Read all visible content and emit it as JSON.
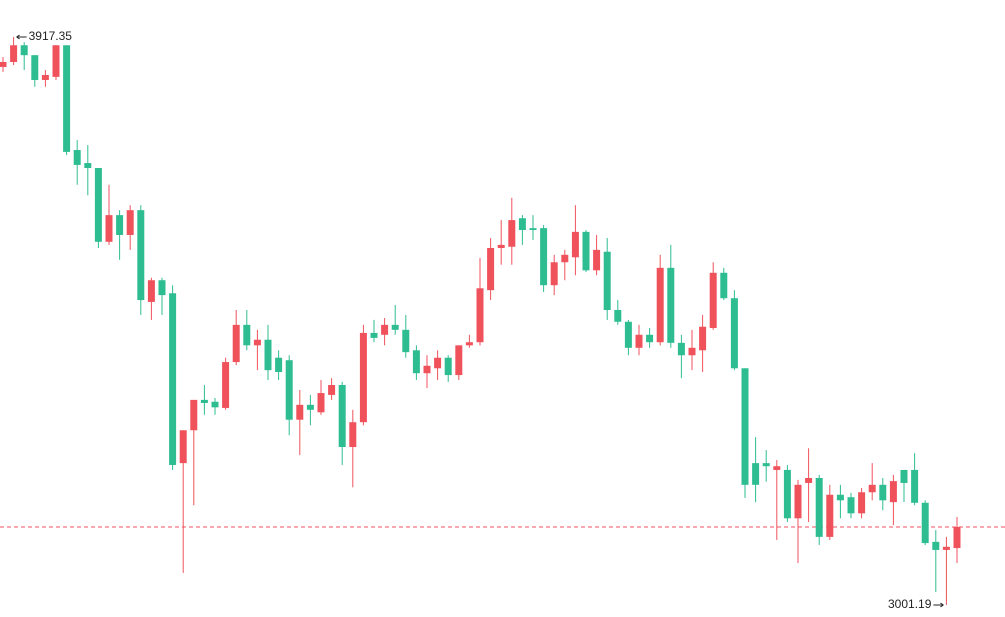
{
  "chart_data": {
    "type": "candlestick",
    "up_color": "#f0525c",
    "down_color": "#2ebd91",
    "last_price_line": true,
    "ylim": [
      2981.8,
      3977.0
    ],
    "annotations": [
      {
        "text": "3917.35"
      },
      {
        "text": "3001.19"
      }
    ],
    "open": [
      3869,
      3877,
      3904,
      3888,
      3848,
      3853,
      3904,
      3735,
      3714,
      3706,
      3587,
      3630,
      3598,
      3638,
      3490,
      3525,
      3504,
      3230,
      3283,
      3332,
      3329,
      3319,
      3393,
      3453,
      3420,
      3429,
      3400,
      3396,
      3300,
      3324,
      3312,
      3340,
      3356,
      3256,
      3296,
      3440,
      3437,
      3453,
      3445,
      3412,
      3375,
      3383,
      3400,
      3372,
      3420,
      3425,
      3509,
      3577,
      3579,
      3625,
      3609,
      3609,
      3517,
      3554,
      3562,
      3603,
      3541,
      3571,
      3477,
      3458,
      3416,
      3437,
      3425,
      3545,
      3424,
      3404,
      3412,
      3448,
      3537,
      3496,
      3383,
      3230,
      3230,
      3219,
      3219,
      3141,
      3198,
      3206,
      3111,
      3179,
      3175,
      3149,
      3183,
      3195,
      3167,
      3219,
      3219,
      3166,
      3103,
      3090,
      3093
    ],
    "high": [
      3885,
      3917.35,
      3909,
      3888,
      3864,
      3904,
      3904,
      3751,
      3743,
      3706,
      3679,
      3638,
      3646,
      3646,
      3529,
      3529,
      3517,
      3283,
      3332,
      3356,
      3335,
      3400,
      3477,
      3477,
      3445,
      3453,
      3412,
      3404,
      3348,
      3340,
      3364,
      3367,
      3361,
      3316,
      3453,
      3461,
      3464,
      3485,
      3469,
      3420,
      3404,
      3412,
      3404,
      3420,
      3437,
      3561,
      3593,
      3622,
      3658,
      3630,
      3630,
      3614,
      3566,
      3574,
      3646,
      3606,
      3598,
      3593,
      3493,
      3461,
      3453,
      3448,
      3566,
      3582,
      3437,
      3445,
      3469,
      3554,
      3545,
      3509,
      3383,
      3272,
      3251,
      3235,
      3227,
      3203,
      3254,
      3211,
      3195,
      3195,
      3182,
      3190,
      3230,
      3206,
      3211,
      3219,
      3246,
      3170,
      3122,
      3111,
      3143
    ],
    "low": [
      3861,
      3872,
      3864,
      3837,
      3837,
      3848,
      3727,
      3679,
      3662,
      3577,
      3582,
      3558,
      3574,
      3469,
      3461,
      3469,
      3219,
      3053,
      3162,
      3308,
      3308,
      3316,
      3388,
      3412,
      3380,
      3364,
      3364,
      3275,
      3243,
      3291,
      3308,
      3332,
      3227,
      3191,
      3291,
      3425,
      3420,
      3437,
      3400,
      3364,
      3351,
      3364,
      3361,
      3364,
      3416,
      3420,
      3493,
      3550,
      3550,
      3582,
      3590,
      3506,
      3501,
      3525,
      3533,
      3538,
      3533,
      3461,
      3453,
      3404,
      3404,
      3416,
      3420,
      3416,
      3367,
      3380,
      3377,
      3445,
      3493,
      3380,
      3174,
      3167,
      3200,
      3106,
      3135,
      3069,
      3135,
      3098,
      3106,
      3141,
      3141,
      3141,
      3170,
      3154,
      3130,
      3167,
      3162,
      3098,
      3022,
      3001.19,
      3069
    ],
    "close": [
      3877,
      3904,
      3888,
      3848,
      3856,
      3904,
      3732,
      3711,
      3706,
      3587,
      3630,
      3598,
      3638,
      3493,
      3525,
      3501,
      3227,
      3283,
      3332,
      3327,
      3320,
      3393,
      3453,
      3420,
      3429,
      3380,
      3377,
      3300,
      3324,
      3316,
      3343,
      3356,
      3256,
      3296,
      3440,
      3432,
      3453,
      3445,
      3409,
      3375,
      3387,
      3400,
      3372,
      3420,
      3425,
      3512,
      3577,
      3582,
      3622,
      3606,
      3606,
      3517,
      3554,
      3566,
      3603,
      3541,
      3574,
      3477,
      3458,
      3416,
      3437,
      3425,
      3545,
      3424,
      3404,
      3416,
      3450,
      3537,
      3496,
      3383,
      3195,
      3195,
      3225,
      3225,
      3141,
      3195,
      3206,
      3111,
      3179,
      3170,
      3149,
      3183,
      3195,
      3170,
      3201,
      3198,
      3166,
      3101,
      3090,
      3095,
      3127
    ]
  }
}
